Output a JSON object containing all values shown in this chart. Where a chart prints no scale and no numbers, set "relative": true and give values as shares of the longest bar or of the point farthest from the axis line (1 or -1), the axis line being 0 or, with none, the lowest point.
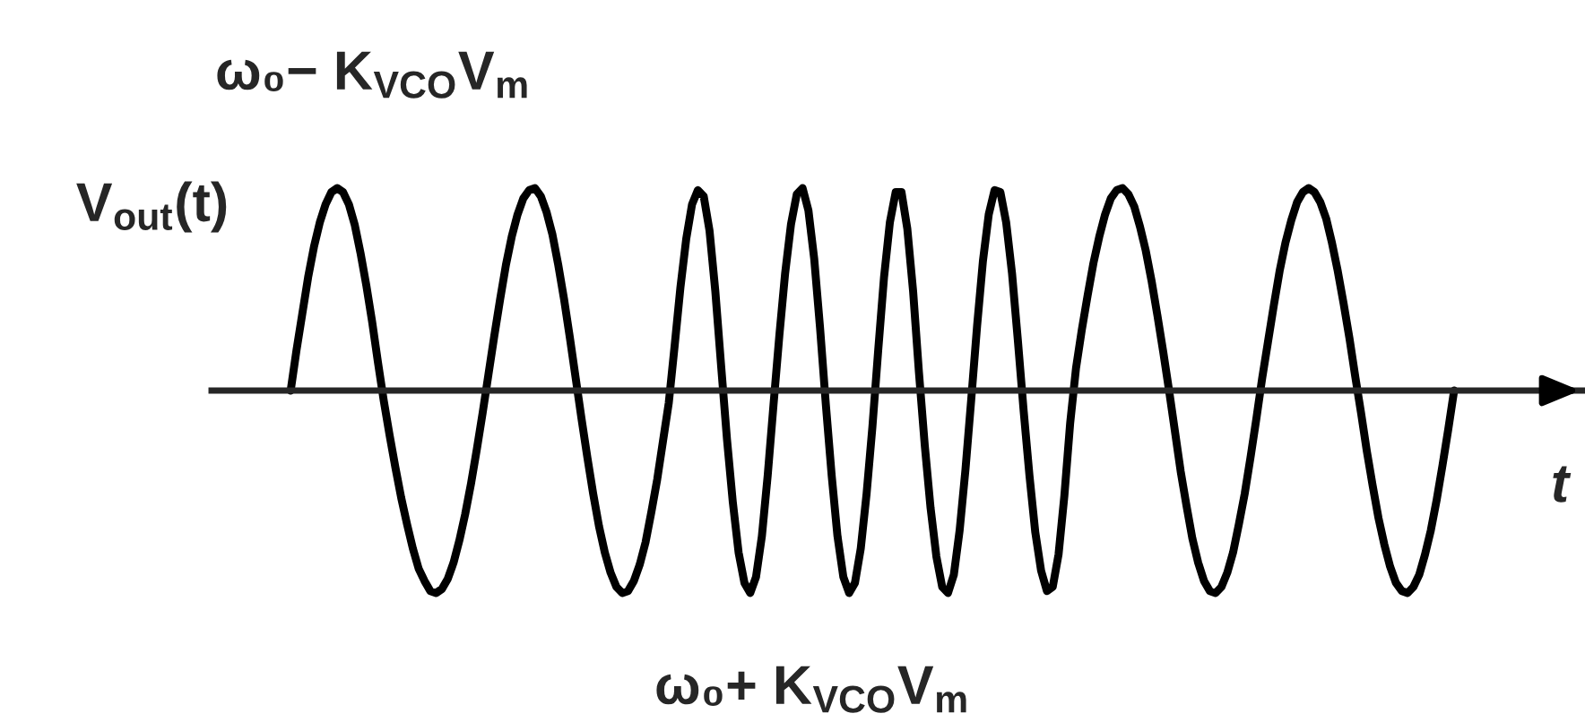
{
  "chart_data": {
    "type": "line",
    "relative": true,
    "xlabel": "t",
    "ylabel": "V$_{out}$(t)",
    "annotations": [
      "ω₀− K$_{VCO}$V$_{m}$",
      "ω₀+ K$_{VCO}$V$_{m}$"
    ],
    "categories": [
      null,
      null,
      null,
      null,
      null,
      null,
      null,
      null,
      null,
      null,
      null,
      null,
      null,
      null,
      null,
      null,
      null,
      null,
      null,
      null,
      null,
      null,
      null,
      null,
      null,
      null,
      null,
      null,
      null,
      null,
      null,
      null,
      null,
      null,
      null,
      null,
      null,
      null,
      null,
      null,
      null,
      null,
      null,
      null,
      null,
      null,
      null,
      null,
      null,
      null,
      null,
      null,
      null,
      null,
      null,
      null,
      null,
      null,
      null,
      null,
      null,
      null,
      null,
      null,
      null,
      null,
      null,
      null,
      null,
      null,
      null,
      null,
      null,
      null,
      null,
      null,
      null,
      null,
      null,
      null,
      null,
      null,
      null,
      null,
      null,
      null,
      null,
      null,
      null,
      null,
      null,
      null,
      null,
      null,
      null,
      null,
      null,
      null,
      null,
      null,
      null,
      null,
      null,
      null,
      null,
      null,
      null,
      null,
      null,
      null,
      null,
      null,
      null,
      null,
      null,
      null,
      null,
      null,
      null,
      null,
      null,
      null,
      null,
      null,
      null,
      null,
      null,
      null,
      null,
      null,
      null,
      null,
      null,
      null,
      null,
      null,
      null,
      null,
      null,
      null,
      null,
      null,
      null,
      null,
      null,
      null,
      null,
      null,
      null,
      null,
      null,
      null,
      null,
      null,
      null,
      null,
      null,
      null,
      null,
      null,
      null,
      null,
      null,
      null,
      null,
      null,
      null,
      null,
      null,
      null,
      null,
      null,
      null,
      null,
      null,
      null,
      null,
      null,
      null,
      null,
      null,
      null,
      null,
      null,
      null,
      null,
      null,
      null,
      null,
      null,
      null,
      null,
      null,
      null,
      null,
      null,
      null,
      null,
      null,
      null,
      null
    ],
    "series": [
      {
        "color": "#000000",
        "values": [
          0,
          0.2,
          0.38,
          0.56,
          0.71,
          0.83,
          0.92,
          0.98,
          1,
          0.98,
          0.92,
          0.82,
          0.68,
          0.52,
          0.34,
          0.14,
          -0.05,
          -0.22,
          -0.38,
          -0.53,
          -0.66,
          -0.78,
          -0.88,
          -0.94,
          -0.99,
          -1,
          -0.98,
          -0.93,
          -0.85,
          -0.74,
          -0.61,
          -0.46,
          -0.29,
          -0.11,
          0.08,
          0.27,
          0.45,
          0.62,
          0.76,
          0.87,
          0.95,
          0.99,
          1,
          0.96,
          0.88,
          0.77,
          0.62,
          0.45,
          0.26,
          0.06,
          -0.14,
          -0.33,
          -0.51,
          -0.67,
          -0.8,
          -0.9,
          -0.97,
          -1,
          -0.99,
          -0.94,
          -0.86,
          -0.75,
          -0.6,
          -0.44,
          -0.25,
          -0.06,
          0.22,
          0.51,
          0.75,
          0.92,
          0.99,
          0.96,
          0.79,
          0.49,
          0.12,
          -0.24,
          -0.55,
          -0.8,
          -0.95,
          -1,
          -0.92,
          -0.72,
          -0.42,
          -0.07,
          0.27,
          0.58,
          0.82,
          0.97,
          1,
          0.89,
          0.65,
          0.31,
          -0.07,
          -0.42,
          -0.72,
          -0.92,
          -1,
          -0.95,
          -0.78,
          -0.51,
          -0.18,
          0.2,
          0.56,
          0.83,
          0.98,
          0.98,
          0.8,
          0.49,
          0.09,
          -0.27,
          -0.58,
          -0.82,
          -0.97,
          -1,
          -0.91,
          -0.69,
          -0.39,
          -0.04,
          0.32,
          0.64,
          0.87,
          0.99,
          0.98,
          0.83,
          0.58,
          0.25,
          -0.1,
          -0.42,
          -0.7,
          -0.89,
          -0.99,
          -0.97,
          -0.81,
          -0.52,
          -0.16,
          0.11,
          0.3,
          0.47,
          0.63,
          0.76,
          0.87,
          0.95,
          0.99,
          1,
          0.97,
          0.91,
          0.81,
          0.69,
          0.54,
          0.37,
          0.19,
          0,
          -0.2,
          -0.4,
          -0.57,
          -0.73,
          -0.85,
          -0.94,
          -0.99,
          -1,
          -0.97,
          -0.9,
          -0.8,
          -0.66,
          -0.51,
          -0.33,
          -0.14,
          0.06,
          0.24,
          0.42,
          0.59,
          0.73,
          0.84,
          0.93,
          0.98,
          1,
          0.98,
          0.93,
          0.85,
          0.73,
          0.59,
          0.43,
          0.26,
          0.07,
          -0.11,
          -0.3,
          -0.47,
          -0.63,
          -0.76,
          -0.87,
          -0.95,
          -0.99,
          -1,
          -0.97,
          -0.91,
          -0.81,
          -0.69,
          -0.54,
          -0.37,
          -0.19,
          0
        ]
      }
    ]
  }
}
